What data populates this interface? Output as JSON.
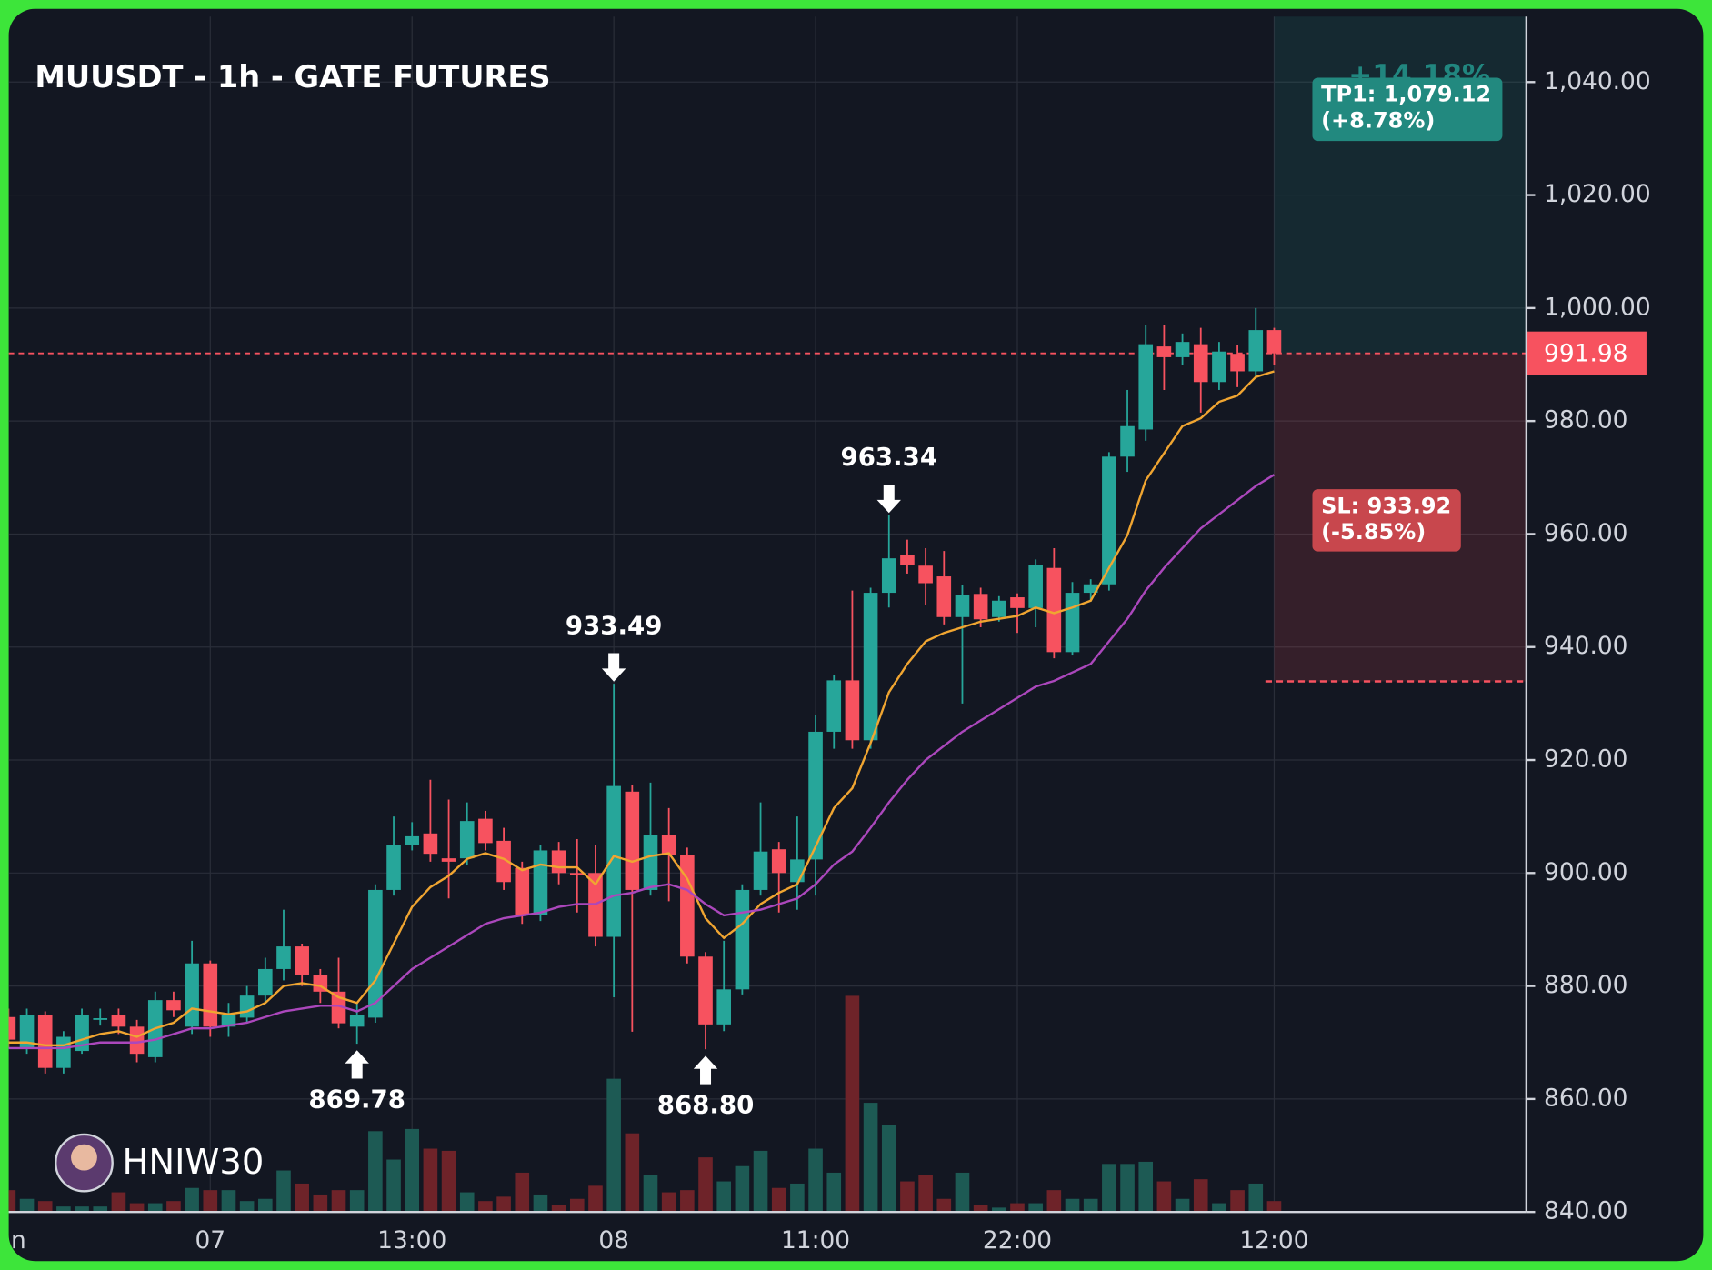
{
  "chart_data": {
    "type": "candlestick",
    "title": "MUUSDT - 1h - GATE FUTURES",
    "watermark": "HNIW30",
    "categories": [
      "n",
      null,
      null,
      null,
      null,
      null,
      null,
      null,
      null,
      null,
      null,
      "07",
      null,
      null,
      null,
      null,
      null,
      null,
      null,
      null,
      null,
      null,
      "13:00",
      null,
      null,
      null,
      null,
      null,
      null,
      null,
      null,
      null,
      null,
      "08",
      null,
      null,
      null,
      null,
      null,
      null,
      null,
      null,
      null,
      null,
      "11:00",
      null,
      null,
      null,
      null,
      null,
      null,
      null,
      null,
      null,
      null,
      "22:00",
      null,
      null,
      null,
      null,
      null,
      null,
      null,
      null,
      null,
      null,
      null,
      null,
      null,
      "12:00"
    ],
    "open": [
      874.5,
      869,
      874.8,
      865.5,
      868.5,
      874,
      874.8,
      872.8,
      867.4,
      877.5,
      872.8,
      884,
      872.8,
      874.4,
      878.3,
      883,
      887,
      882,
      879,
      872.8,
      874.4,
      897,
      905,
      907,
      902.6,
      902.6,
      909.6,
      905.7,
      900.9,
      892.5,
      904,
      900,
      900,
      888.7,
      914.4,
      897,
      906.7,
      903.2,
      885.2,
      873.2,
      879.4,
      897,
      904.2,
      898.4,
      902.4,
      925,
      934.1,
      923.5,
      949.6,
      956.3,
      954.4,
      952.5,
      945.3,
      949.4,
      945.3,
      948.8,
      946.9,
      954,
      939.1,
      949.6,
      951.1,
      973.7,
      978.5,
      993.2,
      991.3,
      993.6,
      986.9,
      991.9,
      988.8,
      996.1
    ],
    "high": [
      876,
      876,
      875.5,
      872,
      876,
      876,
      876,
      874,
      879,
      879,
      888,
      884.5,
      877,
      880,
      885,
      893.5,
      887.5,
      883,
      885,
      877,
      898,
      910,
      909,
      916.5,
      913,
      912.5,
      911,
      908,
      902,
      905,
      905.5,
      906,
      905,
      933.49,
      915.5,
      916,
      911.5,
      904.5,
      886,
      888,
      898,
      912.5,
      905.5,
      910,
      928,
      935,
      950,
      950.5,
      963.34,
      959,
      957.5,
      957,
      951,
      950.5,
      949,
      949.5,
      955.5,
      957.5,
      951.5,
      952,
      974.5,
      985.5,
      997,
      997,
      995.5,
      996.5,
      994,
      993.5,
      1000,
      996.5
    ],
    "low": [
      869,
      868,
      864.5,
      864.5,
      868,
      873,
      871.5,
      866.5,
      866.5,
      874.5,
      871.5,
      871,
      871,
      873.5,
      877,
      881,
      880,
      877,
      872.5,
      869.78,
      873.5,
      896,
      904,
      902,
      895.5,
      901.5,
      904,
      897,
      891,
      891.5,
      898,
      893,
      887,
      878,
      871.9,
      896,
      895,
      884,
      868.8,
      872,
      878.5,
      896,
      893,
      893.5,
      896,
      922,
      922,
      922,
      947,
      953,
      947.5,
      944,
      930,
      943.5,
      944.5,
      942.5,
      943.5,
      938,
      938.5,
      948,
      950,
      971,
      976.5,
      985.5,
      990,
      981.5,
      985.5,
      986,
      987.5,
      990
    ],
    "close": [
      870.5,
      874.8,
      865.5,
      871,
      874.8,
      874.3,
      872.8,
      868,
      877.5,
      875.7,
      884,
      872.8,
      874.8,
      878.3,
      883,
      887,
      882,
      879,
      873.4,
      874.8,
      897,
      905,
      906.5,
      903.4,
      902,
      909.2,
      905.3,
      898.4,
      892.5,
      904,
      900,
      899.6,
      888.7,
      915.4,
      897,
      906.7,
      903.2,
      885.2,
      873.2,
      879.4,
      897,
      903.8,
      900,
      902.4,
      925,
      934.1,
      923.5,
      949.6,
      955.7,
      954.6,
      951.3,
      945.3,
      949.2,
      944.9,
      948.2,
      946.9,
      954.6,
      939.1,
      949.6,
      951.1,
      973.7,
      979.1,
      993.6,
      991.3,
      994,
      986.9,
      992.3,
      988.8,
      996.1,
      991.98
    ],
    "volume": [
      20,
      12,
      10,
      5,
      5,
      5,
      18,
      8,
      8,
      10,
      22,
      20,
      20,
      10,
      12,
      38,
      26,
      16,
      20,
      20,
      74,
      48,
      76,
      58,
      56,
      18,
      10,
      14,
      36,
      16,
      6,
      12,
      24,
      122,
      72,
      34,
      18,
      20,
      50,
      28,
      42,
      56,
      22,
      26,
      58,
      36,
      198,
      100,
      80,
      28,
      34,
      12,
      36,
      6,
      4,
      8,
      8,
      20,
      12,
      12,
      44,
      44,
      46,
      28,
      12,
      30,
      8,
      20,
      26,
      10
    ],
    "colors": {
      "up": "#26a69a",
      "down": "#f7525f",
      "volume_up": "#1d5a54",
      "volume_down": "#6e2329"
    },
    "lines": [
      {
        "color": "#f0a531",
        "values": [
          870,
          870,
          869.5,
          869.5,
          870.5,
          871.5,
          872,
          871,
          872.5,
          873.5,
          876,
          875.5,
          875,
          875.5,
          877,
          880,
          880.5,
          880,
          878,
          877,
          881,
          887.5,
          894,
          897.5,
          899.5,
          902.5,
          903.5,
          902.5,
          900.5,
          901.5,
          901,
          901,
          898,
          903,
          902,
          903,
          903.5,
          899,
          892,
          888.5,
          891,
          894.5,
          896.5,
          898,
          904.7,
          911.5,
          915,
          923,
          932,
          937,
          941,
          942.5,
          943.5,
          944.5,
          945,
          945.5,
          947,
          946,
          947,
          948.2,
          954,
          959.8,
          969.5,
          974.3,
          979.1,
          980.5,
          983.4,
          984.5,
          987.8,
          988.8
        ]
      },
      {
        "color": "#ab47bc",
        "values": [
          869,
          869,
          869,
          869,
          869.5,
          870,
          870,
          870,
          870.5,
          871.5,
          872.5,
          872.5,
          873,
          873.5,
          874.5,
          875.5,
          876,
          876.5,
          876.5,
          875.5,
          877,
          880,
          883,
          885,
          887,
          889,
          891,
          892,
          892.5,
          893,
          894,
          894.5,
          894.5,
          896,
          896.5,
          897.5,
          898,
          897,
          894.5,
          892.5,
          893,
          893.5,
          894.5,
          895.5,
          898,
          901.5,
          903.8,
          908,
          912.5,
          916.5,
          920,
          922.5,
          925,
          927,
          929,
          931,
          933,
          934,
          935.5,
          937,
          941,
          945,
          950,
          954,
          957.5,
          961,
          963.5,
          966,
          968.5,
          970.5
        ]
      }
    ],
    "annotations": [
      {
        "value": 869.78,
        "label": "869.78",
        "at": "low"
      },
      {
        "value": 933.49,
        "label": "933.49",
        "at": "high"
      },
      {
        "value": 868.8,
        "label": "868.80",
        "at": "low"
      },
      {
        "value": 963.34,
        "label": "963.34",
        "at": "high"
      }
    ],
    "price_line": {
      "value": 991.98,
      "label": "991.98",
      "color": "#f7525f"
    },
    "position": {
      "tp": 1079.12,
      "tp_label": "TP1: 1,079.12",
      "tp_pct": "(+8.78%)",
      "tp2_pct": "+14.18%",
      "sl": 933.92,
      "sl_label": "SL: 933.92",
      "sl_pct": "(-5.85%)"
    },
    "ylim": [
      840,
      1051.6
    ],
    "yticks": [
      {
        "value": 840,
        "label": "840.00"
      },
      {
        "value": 860,
        "label": "860.00"
      },
      {
        "value": 880,
        "label": "880.00"
      },
      {
        "value": 900,
        "label": "900.00"
      },
      {
        "value": 920,
        "label": "920.00"
      },
      {
        "value": 940,
        "label": "940.00"
      },
      {
        "value": 960,
        "label": "960.00"
      },
      {
        "value": 980,
        "label": "980.00"
      },
      {
        "value": 1000,
        "label": "1,000.00"
      },
      {
        "value": 1020,
        "label": "1,020.00"
      },
      {
        "value": 1040,
        "label": "1,040.00"
      }
    ],
    "grid": true
  }
}
